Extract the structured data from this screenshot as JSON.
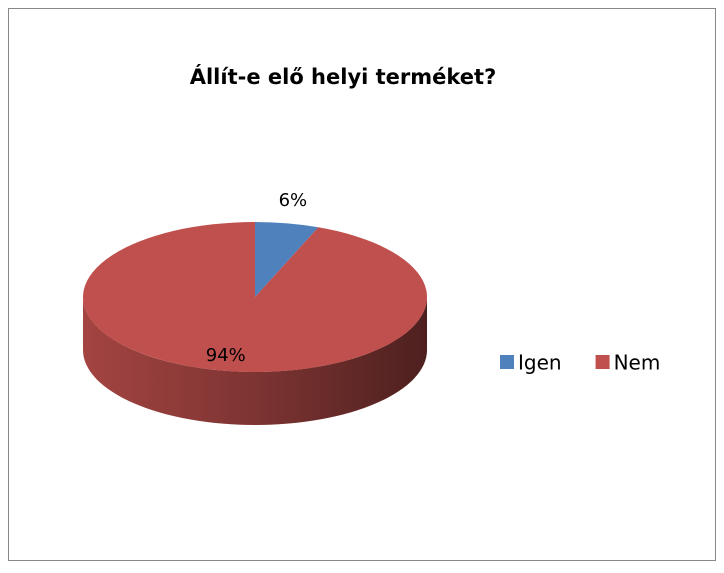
{
  "chart_data": {
    "type": "pie",
    "title": "Állít-e elő helyi terméket?",
    "categories": [
      "Igen",
      "Nem"
    ],
    "values": [
      6,
      94
    ],
    "value_labels": [
      "6%",
      "94%"
    ],
    "colors": [
      "#4f81bd",
      "#c0504d"
    ],
    "legend": "right",
    "three_d": true
  }
}
